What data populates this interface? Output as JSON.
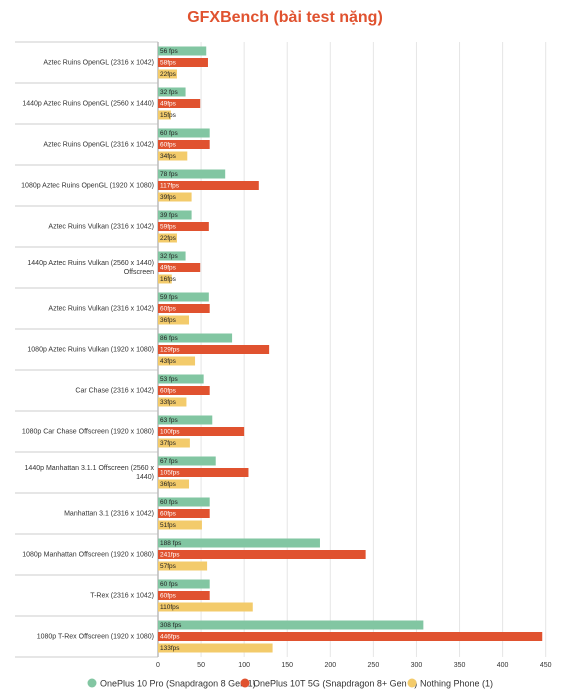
{
  "chart_data": {
    "type": "hbar",
    "title": "GFXBench (bài test nặng)",
    "categories": [
      "Aztec Ruins OpenGL (2316 x 1042)",
      "1440p Aztec Ruins OpenGL (2560 x 1440)",
      "Aztec Ruins OpenGL (2316 x 1042)",
      "1080p Aztec Ruins OpenGL (1920 X 1080)",
      "Aztec Ruins Vulkan (2316 x 1042)",
      "1440p Aztec Ruins Vulkan (2560 x 1440) Offscreen",
      "Aztec Ruins Vulkan (2316 x 1042)",
      "1080p Aztec Ruins Vulkan (1920 x 1080)",
      "Car Chase (2316 x 1042)",
      "1080p Car Chase Offscreen (1920 x 1080)",
      "1440p Manhattan 3.1.1 Offscreen (2560 x 1440)",
      "Manhattan 3.1 (2316 x 1042)",
      "1080p Manhattan Offscreen (1920 x 1080)",
      "T-Rex (2316 x 1042)",
      "1080p T-Rex Offscreen (1920 x 1080)"
    ],
    "series": [
      {
        "name": "OnePlus 10 Pro (Snapdragon 8 Gen 1)",
        "color": "#82c6a2",
        "values": [
          56,
          32,
          60,
          78,
          39,
          32,
          59,
          86,
          53,
          63,
          67,
          60,
          188,
          60,
          308
        ],
        "value_labels": [
          "56 fps",
          "32 fps",
          "60 fps",
          "78 fps",
          "39 fps",
          "32 fps",
          "59 fps",
          "86 fps",
          "53 fps",
          "63 fps",
          "67 fps",
          "60 fps",
          "188 fps",
          "60 fps",
          "308 fps"
        ]
      },
      {
        "name": "OnePlus 10T 5G (Snapdragon 8+ Gen 1)",
        "color": "#e0522f",
        "values": [
          58,
          49,
          60,
          117,
          59,
          49,
          60,
          129,
          60,
          100,
          105,
          60,
          241,
          60,
          446
        ],
        "value_labels": [
          "58fps",
          "49fps",
          "60fps",
          "117fps",
          "59fps",
          "49fps",
          "60fps",
          "129fps",
          "60fps",
          "100fps",
          "105fps",
          "60fps",
          "241fps",
          "60fps",
          "446fps"
        ]
      },
      {
        "name": "Nothing Phone (1)",
        "color": "#f3cb6b",
        "values": [
          22,
          15,
          34,
          39,
          22,
          16,
          36,
          43,
          33,
          37,
          36,
          51,
          57,
          110,
          133
        ],
        "value_labels": [
          "22fps",
          "15fps",
          "34fps",
          "39fps",
          "22fps",
          "16fps",
          "36fps",
          "43fps",
          "33fps",
          "37fps",
          "36fps",
          "51fps",
          "57fps",
          "110fps",
          "133fps"
        ]
      }
    ],
    "xlim": [
      0,
      455
    ],
    "xticks": [
      0,
      50,
      100,
      150,
      200,
      250,
      300,
      350,
      400,
      450
    ]
  }
}
